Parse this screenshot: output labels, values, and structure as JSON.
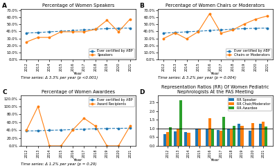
{
  "chart_data": [
    {
      "type": "line",
      "panel_label": "A",
      "title": "Percentage of Women Speakers",
      "x_label": "Year",
      "annotation": "Time series: Δ 3.3% per year (p <0.001)",
      "x": [
        2012,
        2013,
        2014,
        2015,
        2016,
        2017,
        2018,
        2019,
        2020,
        2021
      ],
      "series": [
        {
          "name": "Ever certified by ABP",
          "values": [
            0.378,
            0.383,
            0.395,
            0.403,
            0.413,
            0.423,
            0.433,
            0.44,
            0.445,
            0.448
          ],
          "line_style": "dashed",
          "marker": "o"
        },
        {
          "name": "Speakers",
          "values": [
            0.25,
            0.315,
            0.315,
            0.395,
            0.395,
            0.395,
            0.43,
            0.56,
            0.395,
            0.575
          ],
          "line_style": "solid",
          "marker": "o"
        }
      ],
      "xlim": [
        2011.5,
        2021.5
      ],
      "xticks": [
        2012,
        2013,
        2014,
        2015,
        2016,
        2017,
        2018,
        2019,
        2020,
        2021
      ],
      "ylim": [
        0,
        0.72
      ],
      "yticks": [
        {
          "value": 0,
          "label": "0.0%"
        },
        {
          "value": 0.1,
          "label": "10.0%"
        },
        {
          "value": 0.2,
          "label": "20.0%"
        },
        {
          "value": 0.3,
          "label": "30.0%"
        },
        {
          "value": 0.4,
          "label": "40.0%"
        },
        {
          "value": 0.5,
          "label": "50.0%"
        },
        {
          "value": 0.6,
          "label": "60.0%"
        },
        {
          "value": 0.7,
          "label": "70.0%"
        }
      ],
      "legend": "lower right",
      "grid": false
    },
    {
      "type": "line",
      "panel_label": "B",
      "title": "Percentage of Women Chairs or Moderators",
      "x_label": "Year",
      "annotation": "Time series: Δ 3.2% per year (p = 0.004)",
      "x": [
        2012,
        2013,
        2014,
        2015,
        2016,
        2017,
        2018,
        2019,
        2020,
        2021
      ],
      "series": [
        {
          "name": "Ever certified by ABP",
          "values": [
            0.378,
            0.383,
            0.395,
            0.403,
            0.413,
            0.423,
            0.433,
            0.44,
            0.445,
            0.448
          ],
          "line_style": "dashed",
          "marker": "o"
        },
        {
          "name": "Chairs or Moderators",
          "values": [
            0.3,
            0.38,
            0.295,
            0.395,
            0.655,
            0.375,
            0.42,
            0.505,
            0.575,
            0.62
          ],
          "line_style": "solid",
          "marker": "o"
        }
      ],
      "xlim": [
        2011.5,
        2021.5
      ],
      "xticks": [
        2012,
        2013,
        2014,
        2015,
        2016,
        2017,
        2018,
        2019,
        2020,
        2021
      ],
      "ylim": [
        0,
        0.72
      ],
      "yticks": [
        {
          "value": 0,
          "label": "0.0%"
        },
        {
          "value": 0.1,
          "label": "10.0%"
        },
        {
          "value": 0.2,
          "label": "20.0%"
        },
        {
          "value": 0.3,
          "label": "30.0%"
        },
        {
          "value": 0.4,
          "label": "40.0%"
        },
        {
          "value": 0.5,
          "label": "50.0%"
        },
        {
          "value": 0.6,
          "label": "60.0%"
        },
        {
          "value": 0.7,
          "label": "70.0%"
        }
      ],
      "legend": "lower right",
      "grid": false
    },
    {
      "type": "line",
      "panel_label": "C",
      "title": "Percentage of Women Awardees",
      "x_label": "Year",
      "annotation": "Time series: Δ 1.2% per year (p = 0.29)",
      "x": [
        2012,
        2013,
        2014,
        2015,
        2016,
        2017,
        2018,
        2019,
        2020,
        2021
      ],
      "series": [
        {
          "name": "Ever certified by ABP",
          "values": [
            0.378,
            0.383,
            0.395,
            0.403,
            0.413,
            0.423,
            0.433,
            0.44,
            0.445,
            0.448
          ],
          "line_style": "dashed",
          "marker": "o"
        },
        {
          "name": "Award Recipients",
          "values": [
            0.4,
            1.0,
            0.0,
            0.0,
            0.4,
            0.7,
            0.5,
            0.0,
            0.0,
            0.5
          ],
          "line_style": "solid",
          "marker": "o"
        }
      ],
      "xlim": [
        2011.5,
        2021.5
      ],
      "xticks": [
        2012,
        2013,
        2014,
        2015,
        2016,
        2017,
        2018,
        2019,
        2020,
        2021
      ],
      "ylim": [
        0,
        1.28
      ],
      "yticks": [
        {
          "value": 0,
          "label": "0.0%"
        },
        {
          "value": 0.2,
          "label": "20.0%"
        },
        {
          "value": 0.4,
          "label": "40.0%"
        },
        {
          "value": 0.6,
          "label": "60.0%"
        },
        {
          "value": 0.8,
          "label": "80.0%"
        },
        {
          "value": 1.0,
          "label": "100.0%"
        },
        {
          "value": 1.2,
          "label": "120.0%"
        }
      ],
      "legend": "upper right",
      "grid": false
    },
    {
      "type": "bar",
      "panel_label": "D",
      "title": "Representation Ratios (RR) Of Women Pediatric\nNephrologists At the PAS Meeting",
      "x_label": "Year",
      "categories": [
        "2012",
        "2013",
        "2014",
        "2015",
        "2016",
        "2017",
        "2018",
        "2019",
        "2020",
        "2021"
      ],
      "series": [
        {
          "name": "RR Speaker",
          "values": [
            0.66,
            0.82,
            0.8,
            0.98,
            0.96,
            0.93,
            0.99,
            1.27,
            0.89,
            1.28
          ]
        },
        {
          "name": "RR Chair/Moderator",
          "values": [
            0.79,
            0.99,
            0.75,
            0.98,
            1.58,
            0.89,
            0.97,
            1.15,
            1.29,
            1.38
          ]
        },
        {
          "name": "RR Awardee",
          "values": [
            1.06,
            2.61,
            0.0,
            0.0,
            0.97,
            1.65,
            1.15,
            0.0,
            0.0,
            1.12
          ]
        }
      ],
      "hline": 1.0,
      "ylim": [
        0,
        2.9
      ],
      "yticks": [
        {
          "value": 0.0,
          "label": "0.0"
        },
        0.5,
        {
          "value": 1.0,
          "label": "1.0"
        },
        1.5,
        {
          "value": 2.0,
          "label": "2.0"
        },
        2.5
      ],
      "legend": "upper right",
      "grid": false
    }
  ]
}
